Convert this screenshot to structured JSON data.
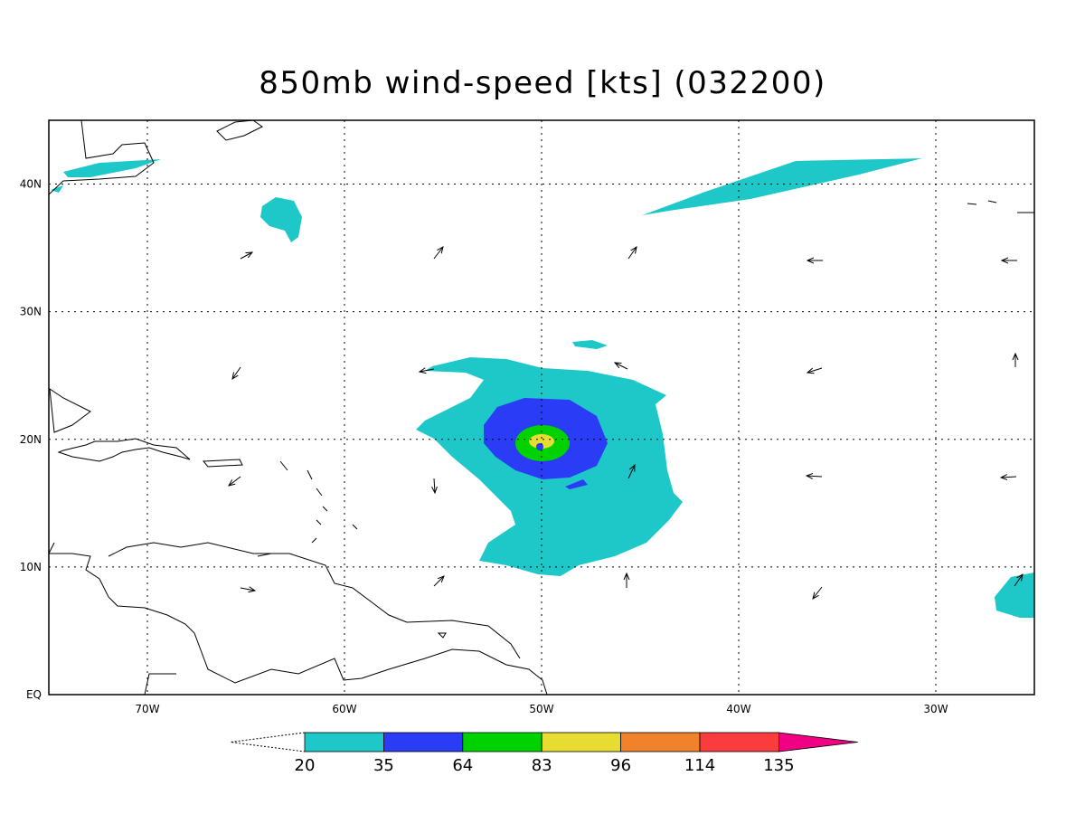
{
  "title": "850mb wind-speed [kts] (032200)",
  "map": {
    "xlim": [
      -75,
      -25
    ],
    "ylim": [
      0,
      45
    ],
    "xticks": [
      {
        "value": -70,
        "label": "70W"
      },
      {
        "value": -60,
        "label": "60W"
      },
      {
        "value": -50,
        "label": "50W"
      },
      {
        "value": -40,
        "label": "40W"
      },
      {
        "value": -30,
        "label": "30W"
      }
    ],
    "yticks": [
      {
        "value": 0,
        "label": "EQ"
      },
      {
        "value": 10,
        "label": "10N"
      },
      {
        "value": 20,
        "label": "20N"
      },
      {
        "value": 30,
        "label": "30N"
      },
      {
        "value": 40,
        "label": "40N"
      }
    ],
    "grid": true
  },
  "colorbar": {
    "levels": [
      20,
      35,
      64,
      83,
      96,
      114,
      135
    ],
    "colors": [
      "#1ec8c8",
      "#2a3cf5",
      "#00d200",
      "#e6dc32",
      "#f0822c",
      "#fa3c3c",
      "#f00082"
    ]
  }
}
